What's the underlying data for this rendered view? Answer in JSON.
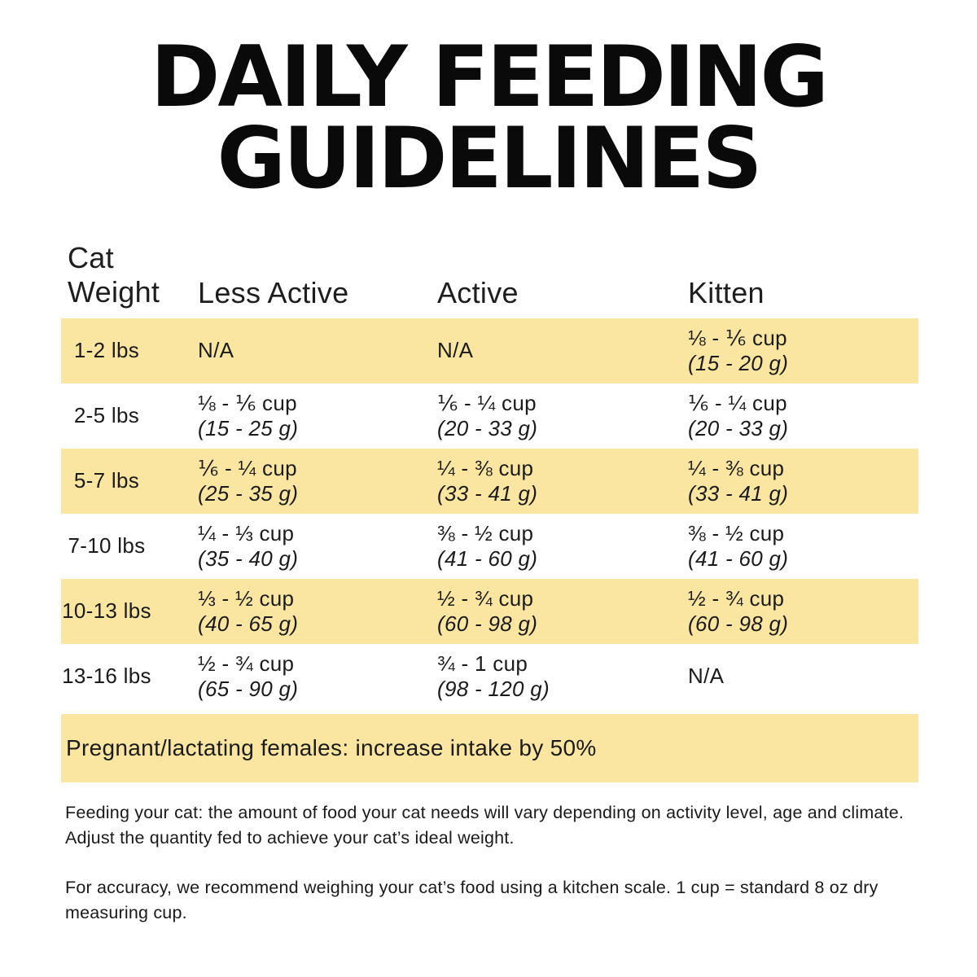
{
  "title": {
    "line1": "DAILY FEEDING",
    "line2": "GUIDELINES"
  },
  "table": {
    "headers": {
      "weight_line1": "Cat",
      "weight_line2": "Weight",
      "less_active": "Less Active",
      "active": "Active",
      "kitten": "Kitten"
    },
    "rows": [
      {
        "weight": "1-2 lbs",
        "less_active": {
          "cup": "N/A",
          "grams": ""
        },
        "active": {
          "cup": "N/A",
          "grams": ""
        },
        "kitten": {
          "cup": "⅛ - ⅙ cup",
          "grams": "(15 - 20 g)"
        }
      },
      {
        "weight": "2-5 lbs",
        "less_active": {
          "cup": "⅛ - ⅙ cup",
          "grams": "(15 - 25 g)"
        },
        "active": {
          "cup": "⅙ - ¼ cup",
          "grams": "(20 - 33 g)"
        },
        "kitten": {
          "cup": "⅙ - ¼ cup",
          "grams": "(20 - 33 g)"
        }
      },
      {
        "weight": "5-7 lbs",
        "less_active": {
          "cup": "⅙ - ¼ cup",
          "grams": "(25 - 35 g)"
        },
        "active": {
          "cup": "¼ - ⅜ cup",
          "grams": "(33 - 41 g)"
        },
        "kitten": {
          "cup": "¼ - ⅜ cup",
          "grams": "(33 - 41 g)"
        }
      },
      {
        "weight": "7-10 lbs",
        "less_active": {
          "cup": "¼ - ⅓ cup",
          "grams": "(35 - 40 g)"
        },
        "active": {
          "cup": "⅜ - ½ cup",
          "grams": "(41 - 60 g)"
        },
        "kitten": {
          "cup": "⅜ - ½ cup",
          "grams": "(41 - 60 g)"
        }
      },
      {
        "weight": "10-13 lbs",
        "less_active": {
          "cup": "⅓ - ½ cup",
          "grams": "(40 - 65 g)"
        },
        "active": {
          "cup": "½ - ¾ cup",
          "grams": "(60 - 98 g)"
        },
        "kitten": {
          "cup": "½ - ¾ cup",
          "grams": "(60 - 98 g)"
        }
      },
      {
        "weight": "13-16 lbs",
        "less_active": {
          "cup": "½ - ¾ cup",
          "grams": "(65 - 90 g)"
        },
        "active": {
          "cup": "¾ - 1 cup",
          "grams": "(98 - 120 g)"
        },
        "kitten": {
          "cup": "N/A",
          "grams": ""
        }
      }
    ]
  },
  "banner": "Pregnant/lactating females: increase intake by 50%",
  "notes": {
    "feeding": "Feeding your cat: the amount of food your cat needs will vary depending on activity level, age and climate. Adjust the quantity fed to achieve your cat’s ideal weight.",
    "accuracy": "For accuracy, we recommend weighing your cat’s food using a kitchen scale. 1 cup = standard 8 oz dry measuring cup."
  },
  "colors": {
    "highlight": "#FBE6A1",
    "text": "#1b1b1b"
  }
}
